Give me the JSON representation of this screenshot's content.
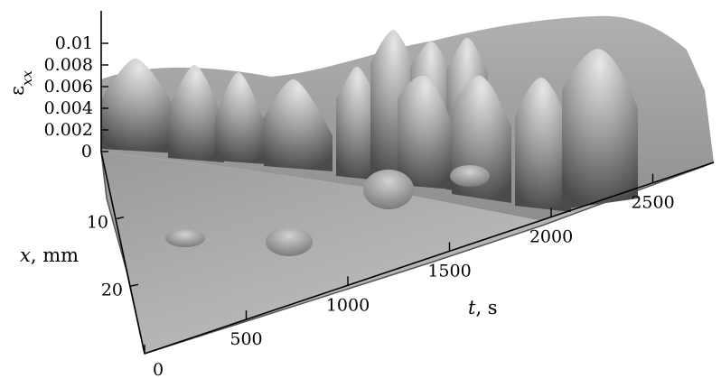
{
  "chart_data": {
    "type": "surface-3d",
    "axes": {
      "z": {
        "label": "ε",
        "label_subscript": "xx",
        "ticks": [
          "0.01",
          "0.008",
          "0.006",
          "0.004",
          "0.002",
          "0"
        ],
        "range": [
          0,
          0.01
        ]
      },
      "x": {
        "label": "x",
        "unit": ", mm",
        "ticks": [
          "10",
          "20"
        ],
        "range": [
          0,
          30
        ]
      },
      "t": {
        "label": "t",
        "unit": ", s",
        "ticks": [
          "0",
          "500",
          "1000",
          "1500",
          "2000",
          "2500"
        ],
        "range": [
          0,
          2800
        ]
      }
    },
    "surface": {
      "description_values": "strain peaks along time axis",
      "peaks": [
        {
          "t": 80,
          "x": 2,
          "strain": 0.0085
        },
        {
          "t": 350,
          "x": 2,
          "strain": 0.0082
        },
        {
          "t": 560,
          "x": 2,
          "strain": 0.0072
        },
        {
          "t": 800,
          "x": 2,
          "strain": 0.0075
        },
        {
          "t": 1150,
          "x": 3,
          "strain": 0.0065
        },
        {
          "t": 1350,
          "x": 3,
          "strain": 0.0072
        },
        {
          "t": 1600,
          "x": 4,
          "strain": 0.007
        },
        {
          "t": 1850,
          "x": 3,
          "strain": 0.0068
        },
        {
          "t": 2200,
          "x": 3,
          "strain": 0.007
        },
        {
          "t": 2500,
          "x": 2,
          "strain": 0.0078
        },
        {
          "t": 1100,
          "x": 8,
          "strain": 0.006
        },
        {
          "t": 1300,
          "x": 10,
          "strain": 0.005
        },
        {
          "t": 1500,
          "x": 10,
          "strain": 0.0052
        },
        {
          "t": 1650,
          "x": 12,
          "strain": 0.004
        },
        {
          "t": 1200,
          "x": 22,
          "strain": 0.003
        },
        {
          "t": 600,
          "x": 22,
          "strain": 0.0028
        }
      ]
    }
  }
}
